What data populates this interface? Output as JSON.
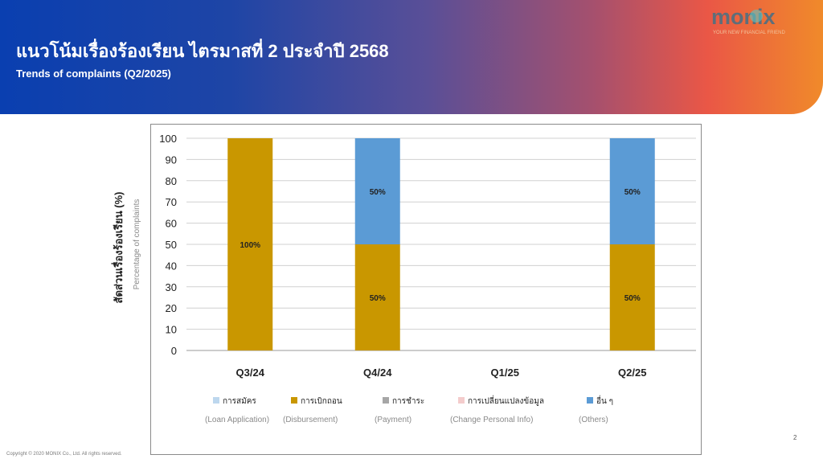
{
  "header": {
    "title_th": "แนวโน้มเรื่องร้องเรียน ไตรมาสที่ 2 ประจำปี 2568",
    "title_en": "Trends of complaints (Q2/2025)"
  },
  "logo": {
    "text": "monix",
    "tagline": "YOUR NEW FINANCIAL FRIEND",
    "accent": "#5bc6c4"
  },
  "chart_data": {
    "type": "bar",
    "stacked": true,
    "categories": [
      "Q3/24",
      "Q4/24",
      "Q1/25",
      "Q2/25"
    ],
    "ylabel_th": "สัดส่วนเรื่องร้องเรียน (%)",
    "ylabel_en": "Percentage of complaints",
    "ylim": [
      0,
      100
    ],
    "yticks": [
      0,
      10,
      20,
      30,
      40,
      50,
      60,
      70,
      80,
      90,
      100
    ],
    "grid": true,
    "legend_position": "bottom",
    "series": [
      {
        "name": "การสมัคร",
        "name_en": "(Loan Application)",
        "color": "#bdd7ee",
        "values": [
          0,
          0,
          0,
          0
        ],
        "labels": [
          "",
          "",
          "",
          ""
        ]
      },
      {
        "name": "การเบิกถอน",
        "name_en": "(Disbursement)",
        "color": "#c99700",
        "values": [
          100,
          50,
          0,
          50
        ],
        "labels": [
          "100%",
          "50%",
          "",
          "50%"
        ]
      },
      {
        "name": "การชำระ",
        "name_en": "(Payment)",
        "color": "#a6a6a6",
        "values": [
          0,
          0,
          0,
          0
        ],
        "labels": [
          "",
          "",
          "",
          ""
        ]
      },
      {
        "name": "การเปลี่ยนแปลงข้อมูล",
        "name_en": "(Change Personal Info)",
        "color": "#f4cccc",
        "values": [
          0,
          0,
          0,
          0
        ],
        "labels": [
          "",
          "",
          "",
          ""
        ]
      },
      {
        "name": "อื่น ๆ",
        "name_en": "(Others)",
        "color": "#5b9bd5",
        "values": [
          0,
          50,
          0,
          50
        ],
        "labels": [
          "",
          "50%",
          "",
          "50%"
        ]
      }
    ]
  },
  "footer": {
    "copyright": "Copyright © 2020 MONIX Co., Ltd. All rights reserved.",
    "page": "2"
  }
}
